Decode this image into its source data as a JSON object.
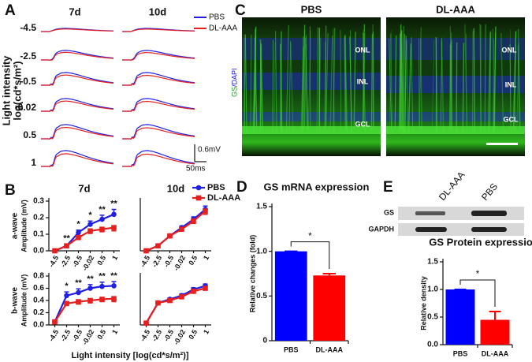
{
  "panel_labels": [
    "A",
    "B",
    "C",
    "D",
    "E"
  ],
  "panel_a": {
    "columns": [
      "7d",
      "10d"
    ],
    "legend": [
      "PBS",
      "DL-AAA"
    ],
    "ylabel": [
      "Light intensity",
      "log(cd*s/m²)"
    ],
    "intensities": [
      "-4.5",
      "-2.5",
      "-0.5",
      "-0.02",
      "0.5",
      "1"
    ],
    "scale_voltage": "0.6mV",
    "scale_time": "50ms"
  },
  "panel_b": {
    "xlabel": "Light intensity [log(cd*s/m²)]"
  },
  "panel_c": {
    "conditions": [
      "PBS",
      "DL-AAA"
    ],
    "stain": [
      "GS",
      "/DAPI"
    ],
    "layers": [
      "ONL",
      "INL",
      "GCL"
    ]
  },
  "panel_e": {
    "lanes": [
      "DL-AAA",
      "PBS"
    ],
    "bands": [
      "GS",
      "GAPDH"
    ]
  },
  "chart_data": [
    {
      "type": "line",
      "title": "7d",
      "group_label": "a-wave",
      "ylabel": "Amplitude (mV)",
      "categories": [
        "-4.5",
        "-2.5",
        "-0.5",
        "-0.02",
        "0.5",
        "1"
      ],
      "ylim": [
        0,
        0.3
      ],
      "yticks": [
        {
          "value": 0,
          "label": "0.0"
        },
        0.1,
        0.2,
        0.3
      ],
      "series": [
        {
          "name": "PBS",
          "color": "#1f1fe6",
          "values": [
            0.0,
            0.03,
            0.11,
            0.16,
            0.19,
            0.22
          ],
          "errors": [
            0.005,
            0.01,
            0.015,
            0.02,
            0.025,
            0.03
          ]
        },
        {
          "name": "DL-AAA",
          "color": "#e61f1f",
          "values": [
            0.0,
            0.03,
            0.08,
            0.12,
            0.13,
            0.14
          ],
          "errors": [
            0.005,
            0.01,
            0.01,
            0.015,
            0.015,
            0.02
          ]
        }
      ],
      "significance": [
        null,
        "**",
        "*",
        "*",
        "**",
        "**"
      ]
    },
    {
      "type": "line",
      "title": "10d",
      "categories": [
        "-4.5",
        "-2.5",
        "-0.5",
        "-0.02",
        "0.5",
        "1"
      ],
      "ylim": [
        0,
        0.3
      ],
      "series": [
        {
          "name": "PBS",
          "color": "#1f1fe6",
          "values": [
            0.0,
            0.03,
            0.09,
            0.14,
            0.19,
            0.25
          ],
          "errors": [
            0.005,
            0.005,
            0.01,
            0.01,
            0.015,
            0.02
          ]
        },
        {
          "name": "DL-AAA",
          "color": "#e61f1f",
          "values": [
            0.0,
            0.03,
            0.09,
            0.13,
            0.18,
            0.24
          ],
          "errors": [
            0.005,
            0.005,
            0.01,
            0.01,
            0.015,
            0.02
          ]
        }
      ],
      "legend": "upper right"
    },
    {
      "type": "line",
      "group_label": "b-wave",
      "ylabel": "Amplitude (mV)",
      "categories": [
        "-4.5",
        "-2.5",
        "-0.5",
        "-0.02",
        "0.5",
        "1"
      ],
      "ylim": [
        0,
        0.8
      ],
      "yticks": [
        {
          "value": 0,
          "label": "0.0"
        },
        0.2,
        0.4,
        0.6,
        0.8
      ],
      "series": [
        {
          "name": "PBS",
          "color": "#1f1fe6",
          "values": [
            0.05,
            0.48,
            0.53,
            0.6,
            0.63,
            0.64
          ],
          "errors": [
            0.01,
            0.06,
            0.06,
            0.06,
            0.07,
            0.07
          ]
        },
        {
          "name": "DL-AAA",
          "color": "#e61f1f",
          "values": [
            0.05,
            0.35,
            0.38,
            0.4,
            0.42,
            0.43
          ],
          "errors": [
            0.01,
            0.03,
            0.04,
            0.04,
            0.04,
            0.05
          ]
        }
      ],
      "significance": [
        null,
        "*",
        "**",
        "**",
        "**",
        "**"
      ]
    },
    {
      "type": "line",
      "categories": [
        "-4.5",
        "-2.5",
        "-0.5",
        "-0.02",
        "0.5",
        "1"
      ],
      "ylim": [
        0,
        0.8
      ],
      "series": [
        {
          "name": "PBS",
          "color": "#1f1fe6",
          "values": [
            0.03,
            0.36,
            0.42,
            0.48,
            0.58,
            0.64
          ],
          "errors": [
            0.01,
            0.02,
            0.02,
            0.03,
            0.03,
            0.03
          ]
        },
        {
          "name": "DL-AAA",
          "color": "#e61f1f",
          "values": [
            0.03,
            0.36,
            0.4,
            0.46,
            0.55,
            0.6
          ],
          "errors": [
            0.01,
            0.02,
            0.02,
            0.03,
            0.03,
            0.03
          ]
        }
      ]
    },
    {
      "type": "bar",
      "title": "GS mRNA expression",
      "ylabel": "Relative changes (fold)",
      "categories": [
        "PBS",
        "DL-AAA"
      ],
      "values": [
        1.0,
        0.73
      ],
      "errors": [
        0,
        0.02
      ],
      "colors": [
        "#0000ff",
        "#ff0000"
      ],
      "ylim": [
        0,
        1.5
      ],
      "yticks": [
        0,
        0.5,
        {
          "value": 1,
          "label": "1.0"
        },
        1.5
      ],
      "significance": "*"
    },
    {
      "type": "bar",
      "title": "GS Protein expression",
      "ylabel": "Relative density",
      "categories": [
        "PBS",
        "DL-AAA"
      ],
      "values": [
        1.0,
        0.45
      ],
      "errors": [
        0,
        0.15
      ],
      "colors": [
        "#0000ff",
        "#ff0000"
      ],
      "ylim": [
        0,
        1.5
      ],
      "yticks": [
        {
          "value": 0,
          "label": "0.0"
        },
        0.5,
        {
          "value": 1,
          "label": "1.0"
        },
        1.5
      ],
      "significance": "*"
    }
  ]
}
